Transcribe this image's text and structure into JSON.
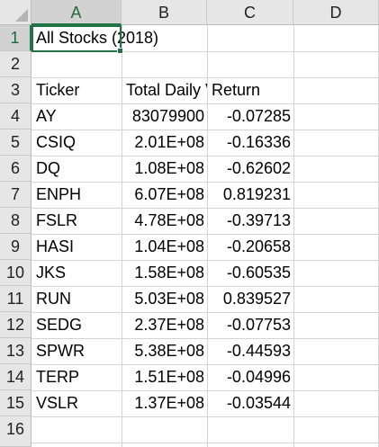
{
  "columns": [
    "A",
    "B",
    "C",
    "D"
  ],
  "rows": [
    "1",
    "2",
    "3",
    "4",
    "5",
    "6",
    "7",
    "8",
    "9",
    "10",
    "11",
    "12",
    "13",
    "14",
    "15",
    "16"
  ],
  "title_cell": "All Stocks (2018)",
  "headers": {
    "ticker": "Ticker",
    "volume": "Total Daily Volume",
    "return": "Return"
  },
  "data": [
    {
      "ticker": "AY",
      "volume": "83079900",
      "return": "-0.07285"
    },
    {
      "ticker": "CSIQ",
      "volume": "2.01E+08",
      "return": "-0.16336"
    },
    {
      "ticker": "DQ",
      "volume": "1.08E+08",
      "return": "-0.62602"
    },
    {
      "ticker": "ENPH",
      "volume": "6.07E+08",
      "return": "0.819231"
    },
    {
      "ticker": "FSLR",
      "volume": "4.78E+08",
      "return": "-0.39713"
    },
    {
      "ticker": "HASI",
      "volume": "1.04E+08",
      "return": "-0.20658"
    },
    {
      "ticker": "JKS",
      "volume": "1.58E+08",
      "return": "-0.60535"
    },
    {
      "ticker": "RUN",
      "volume": "5.03E+08",
      "return": "0.839527"
    },
    {
      "ticker": "SEDG",
      "volume": "2.37E+08",
      "return": "-0.07753"
    },
    {
      "ticker": "SPWR",
      "volume": "5.38E+08",
      "return": "-0.44593"
    },
    {
      "ticker": "TERP",
      "volume": "1.51E+08",
      "return": "-0.04996"
    },
    {
      "ticker": "VSLR",
      "volume": "1.37E+08",
      "return": "-0.03544"
    }
  ],
  "colors": {
    "selection": "#217346",
    "header_bg": "#e6e6e6",
    "gridline": "#d4d4d4"
  }
}
